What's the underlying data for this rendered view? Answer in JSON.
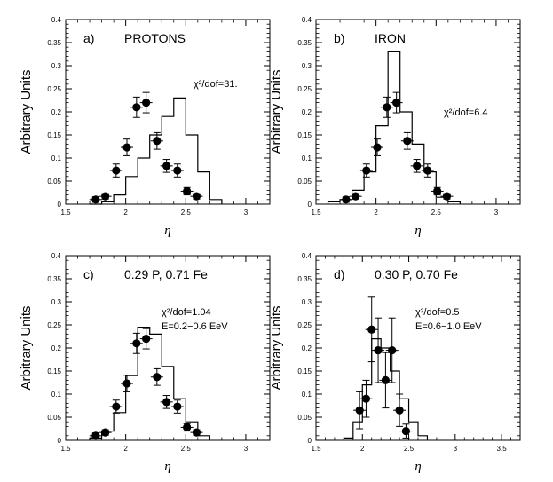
{
  "chart_data": [
    {
      "type": "histogram+scatter",
      "panel_label": "a)",
      "title": "PROTONS",
      "annotations": [
        "χ²/dof=31."
      ],
      "ylabel": "Arbitrary Units",
      "xlabel": "η",
      "xlim": [
        1.5,
        3.2
      ],
      "ylim": [
        0,
        0.4
      ],
      "xticks": [
        1.5,
        2,
        2.5,
        3
      ],
      "xtick_labels": [
        "1.5",
        "2",
        "2.5",
        "3"
      ],
      "yticks": [
        0,
        0.05,
        0.1,
        0.15,
        0.2,
        0.25,
        0.3,
        0.35,
        0.4
      ],
      "ytick_labels": [
        "0",
        "0.05",
        "0.1",
        "0.15",
        "0.2",
        "0.25",
        "0.3",
        "0.35",
        "0.4"
      ],
      "histogram": {
        "bin_edges": [
          1.7,
          1.8,
          1.9,
          2.0,
          2.1,
          2.2,
          2.3,
          2.4,
          2.5,
          2.6,
          2.7,
          2.8
        ],
        "values": [
          0.0,
          0.005,
          0.02,
          0.06,
          0.1,
          0.15,
          0.19,
          0.23,
          0.15,
          0.07,
          0.01
        ]
      },
      "points": {
        "x": [
          1.75,
          1.83,
          1.92,
          2.01,
          2.09,
          2.17,
          2.26,
          2.34,
          2.43,
          2.51,
          2.59
        ],
        "y": [
          0.01,
          0.017,
          0.073,
          0.123,
          0.21,
          0.22,
          0.137,
          0.083,
          0.073,
          0.028,
          0.017
        ],
        "yerr": [
          0.006,
          0.006,
          0.014,
          0.018,
          0.022,
          0.022,
          0.018,
          0.014,
          0.014,
          0.008,
          0.006
        ]
      }
    },
    {
      "type": "histogram+scatter",
      "panel_label": "b)",
      "title": "IRON",
      "annotations": [
        "χ²/dof=6.4"
      ],
      "ylabel": "Arbitrary Units",
      "xlabel": "η",
      "xlim": [
        1.5,
        3.2
      ],
      "ylim": [
        0,
        0.4
      ],
      "xticks": [
        1.5,
        2,
        2.5,
        3
      ],
      "xtick_labels": [
        "1.5",
        "2",
        "2.5",
        "3"
      ],
      "yticks": [
        0,
        0.05,
        0.1,
        0.15,
        0.2,
        0.25,
        0.3,
        0.35,
        0.4
      ],
      "ytick_labels": [
        "0",
        "0.05",
        "0.1",
        "0.15",
        "0.2",
        "0.25",
        "0.3",
        "0.35",
        "0.4"
      ],
      "histogram": {
        "bin_edges": [
          1.6,
          1.7,
          1.8,
          1.9,
          2.0,
          2.1,
          2.2,
          2.3,
          2.4,
          2.5,
          2.6,
          2.7
        ],
        "values": [
          0.005,
          0.01,
          0.03,
          0.07,
          0.17,
          0.33,
          0.2,
          0.13,
          0.07,
          0.015,
          0.005
        ]
      },
      "points": {
        "x": [
          1.75,
          1.83,
          1.92,
          2.01,
          2.09,
          2.17,
          2.26,
          2.34,
          2.43,
          2.51,
          2.59
        ],
        "y": [
          0.01,
          0.017,
          0.073,
          0.123,
          0.21,
          0.22,
          0.137,
          0.083,
          0.073,
          0.028,
          0.017
        ],
        "yerr": [
          0.006,
          0.006,
          0.014,
          0.018,
          0.022,
          0.022,
          0.018,
          0.014,
          0.014,
          0.008,
          0.006
        ]
      }
    },
    {
      "type": "histogram+scatter",
      "panel_label": "c)",
      "title": "0.29  P,  0.71  Fe",
      "annotations": [
        "χ²/dof=1.04",
        "E=0.2−0.6 EeV"
      ],
      "ylabel": "Arbitrary Units",
      "xlabel": "η",
      "xlim": [
        1.5,
        3.2
      ],
      "ylim": [
        0,
        0.4
      ],
      "xticks": [
        1.5,
        2,
        2.5,
        3
      ],
      "xtick_labels": [
        "1.5",
        "2",
        "2.5",
        "3"
      ],
      "yticks": [
        0,
        0.05,
        0.1,
        0.15,
        0.2,
        0.25,
        0.3,
        0.35,
        0.4
      ],
      "ytick_labels": [
        "0",
        "0.05",
        "0.1",
        "0.15",
        "0.2",
        "0.25",
        "0.3",
        "0.35",
        "0.4"
      ],
      "histogram": {
        "bin_edges": [
          1.7,
          1.8,
          1.9,
          2.0,
          2.1,
          2.2,
          2.3,
          2.4,
          2.5,
          2.6,
          2.7
        ],
        "values": [
          0.005,
          0.02,
          0.06,
          0.14,
          0.245,
          0.23,
          0.16,
          0.09,
          0.04,
          0.01
        ]
      },
      "points": {
        "x": [
          1.75,
          1.83,
          1.92,
          2.01,
          2.09,
          2.17,
          2.26,
          2.34,
          2.43,
          2.51,
          2.59
        ],
        "y": [
          0.01,
          0.017,
          0.073,
          0.123,
          0.21,
          0.22,
          0.137,
          0.083,
          0.073,
          0.028,
          0.017
        ],
        "yerr": [
          0.006,
          0.006,
          0.014,
          0.018,
          0.022,
          0.022,
          0.018,
          0.014,
          0.014,
          0.008,
          0.006
        ]
      }
    },
    {
      "type": "histogram+scatter",
      "panel_label": "d)",
      "title": "0.30  P,  0.70  Fe",
      "annotations": [
        "χ²/dof=0.5",
        "E=0.6−1.0 EeV"
      ],
      "ylabel": "Arbitrary Units",
      "xlabel": "η",
      "xlim": [
        1.5,
        3.7
      ],
      "ylim": [
        0,
        0.4
      ],
      "xticks": [
        1.5,
        2,
        2.5,
        3,
        3.5
      ],
      "xtick_labels": [
        "1.5",
        "2",
        "2.5",
        "3",
        "3.5"
      ],
      "yticks": [
        0,
        0.05,
        0.1,
        0.15,
        0.2,
        0.25,
        0.3,
        0.35,
        0.4
      ],
      "ytick_labels": [
        "0",
        "0.05",
        "0.1",
        "0.15",
        "0.2",
        "0.25",
        "0.3",
        "0.35",
        "0.4"
      ],
      "histogram": {
        "bin_edges": [
          1.8,
          1.9,
          2.0,
          2.1,
          2.2,
          2.3,
          2.4,
          2.5,
          2.6,
          2.7
        ],
        "values": [
          0.005,
          0.04,
          0.12,
          0.22,
          0.2,
          0.15,
          0.09,
          0.04,
          0.01
        ]
      },
      "points": {
        "x": [
          1.97,
          2.04,
          2.1,
          2.17,
          2.25,
          2.32,
          2.4,
          2.47
        ],
        "y": [
          0.065,
          0.09,
          0.24,
          0.195,
          0.13,
          0.195,
          0.065,
          0.02
        ],
        "yerr": [
          0.04,
          0.04,
          0.07,
          0.07,
          0.06,
          0.07,
          0.035,
          0.015
        ]
      }
    }
  ]
}
